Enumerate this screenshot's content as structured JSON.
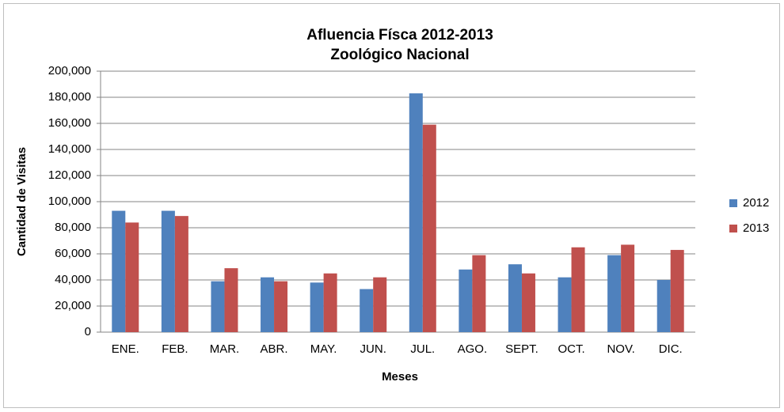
{
  "chart_data": {
    "type": "bar",
    "title": "Afluencia Físca 2012-2013",
    "subtitle": "Zoológico Nacional",
    "x_label": "Meses",
    "y_label": "Cantidad de Visitas",
    "categories": [
      "ENE.",
      "FEB.",
      "MAR.",
      "ABR.",
      "MAY.",
      "JUN.",
      "JUL.",
      "AGO.",
      "SEPT.",
      "OCT.",
      "NOV.",
      "DIC."
    ],
    "series": [
      {
        "name": "2012",
        "color": "#4f81bd",
        "values": [
          93000,
          93000,
          39000,
          42000,
          38000,
          33000,
          183000,
          48000,
          52000,
          42000,
          59000,
          40000
        ]
      },
      {
        "name": "2013",
        "color": "#c0504d",
        "values": [
          84000,
          89000,
          49000,
          39000,
          45000,
          42000,
          159000,
          59000,
          45000,
          65000,
          67000,
          63000
        ]
      }
    ],
    "ylim": [
      0,
      200000
    ],
    "yticks": [
      0,
      {
        "value": 20000,
        "label": "20,000"
      },
      {
        "value": 40000,
        "label": "40,000"
      },
      {
        "value": 60000,
        "label": "60,000"
      },
      {
        "value": 80000,
        "label": "80,000"
      },
      {
        "value": 100000,
        "label": "100,000"
      },
      {
        "value": 120000,
        "label": "120,000"
      },
      {
        "value": 140000,
        "label": "140,000"
      },
      {
        "value": 160000,
        "label": "160,000"
      },
      {
        "value": 180000,
        "label": "180,000"
      },
      {
        "value": 200000,
        "label": "200,000"
      }
    ],
    "grid": true,
    "legend": "right"
  }
}
